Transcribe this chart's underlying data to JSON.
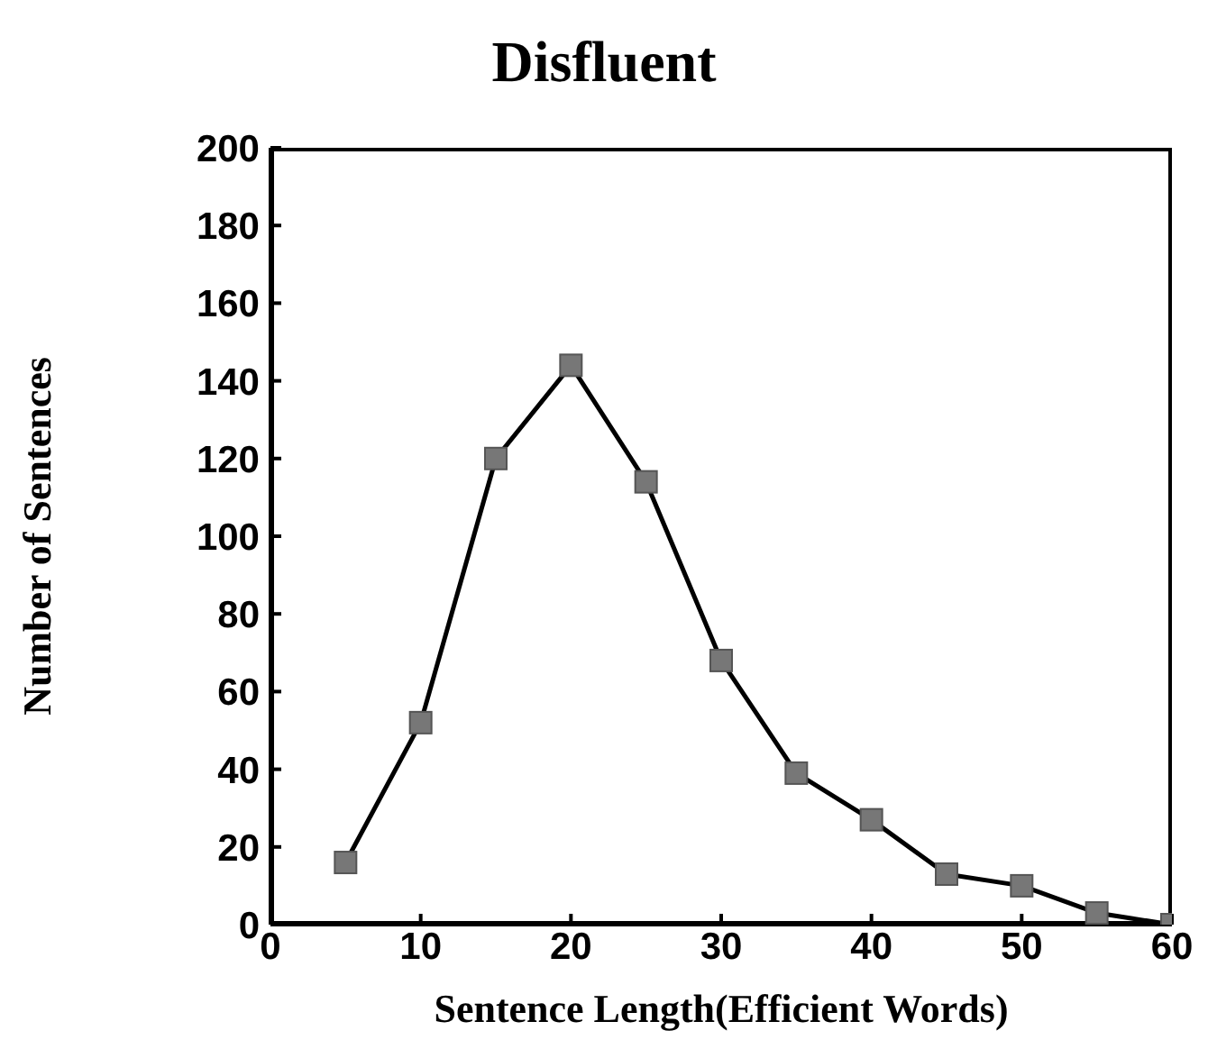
{
  "chart_data": {
    "type": "line",
    "title": "Disfluent",
    "xlabel": "Sentence Length(Efficient Words)",
    "ylabel": "Number of Sentences",
    "x": [
      5,
      10,
      15,
      20,
      25,
      30,
      35,
      40,
      45,
      50,
      55,
      60
    ],
    "series": [
      {
        "color": "#000000",
        "values": [
          16,
          52,
          120,
          144,
          114,
          68,
          39,
          27,
          13,
          10,
          3,
          0
        ]
      }
    ],
    "xlim": [
      0,
      60
    ],
    "xticks": [
      0,
      10,
      20,
      30,
      40,
      50,
      60
    ],
    "ylim": [
      0,
      200
    ],
    "yticks": [
      0,
      20,
      40,
      60,
      80,
      100,
      120,
      140,
      160,
      180,
      200
    ],
    "marker": "square",
    "line_style": "solid",
    "grid": false,
    "legend": false
  }
}
